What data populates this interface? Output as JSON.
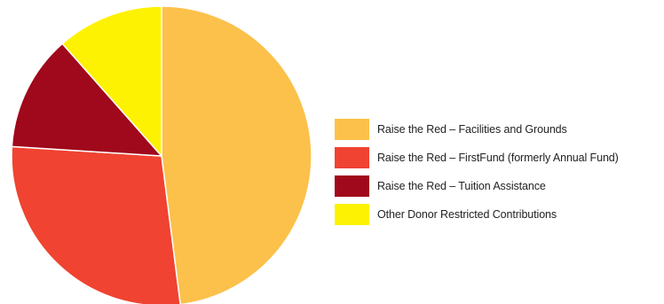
{
  "chart_data": {
    "type": "pie",
    "title": "",
    "legend_position": "right",
    "slices": [
      {
        "label": "Raise the Red – Facilities and Grounds",
        "value": 48,
        "color": "#fcc14b"
      },
      {
        "label": "Raise the Red – FirstFund (formerly Annual Fund)",
        "value": 28,
        "color": "#f04331"
      },
      {
        "label": "Raise the Red – Tuition Assistance",
        "value": 12.5,
        "color": "#a0081b"
      },
      {
        "label": "Other Donor Restricted Contributions",
        "value": 11.5,
        "color": "#fdf201"
      }
    ]
  }
}
